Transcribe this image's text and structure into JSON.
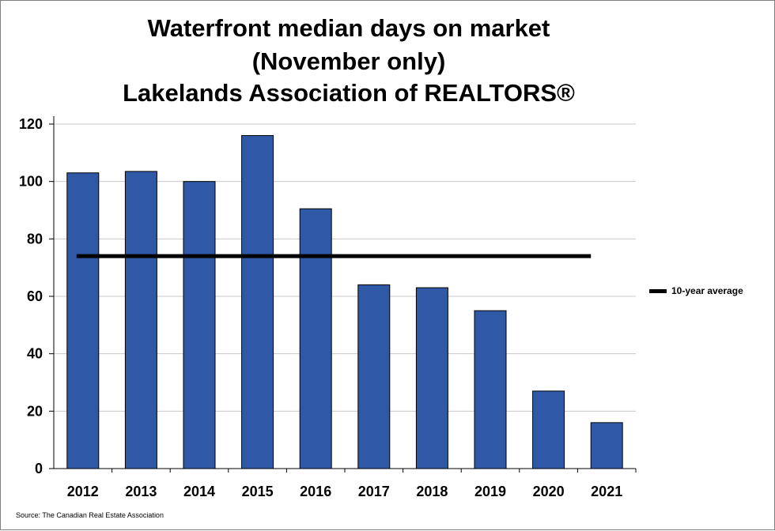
{
  "chart_data": {
    "type": "bar",
    "title": [
      "Waterfront median days on market",
      "(November only)",
      "Lakelands Association of REALTORS®"
    ],
    "categories": [
      "2012",
      "2013",
      "2014",
      "2015",
      "2016",
      "2017",
      "2018",
      "2019",
      "2020",
      "2021"
    ],
    "series": [
      {
        "name": "Median days on market",
        "values": [
          103,
          103.5,
          100,
          116,
          90.5,
          64,
          63,
          55,
          27,
          16
        ],
        "color": "#2f59a7"
      },
      {
        "name": "10-year average",
        "type": "line",
        "value": 74,
        "color": "#000000"
      }
    ],
    "yticks": [
      0,
      20,
      40,
      60,
      80,
      100,
      120
    ],
    "ylim": [
      0,
      120
    ],
    "xlabel": "",
    "ylabel": "",
    "grid": true,
    "legend": {
      "position": "right",
      "label": "10-year average"
    },
    "source": "Source: The Canadian Real Estate Association"
  }
}
